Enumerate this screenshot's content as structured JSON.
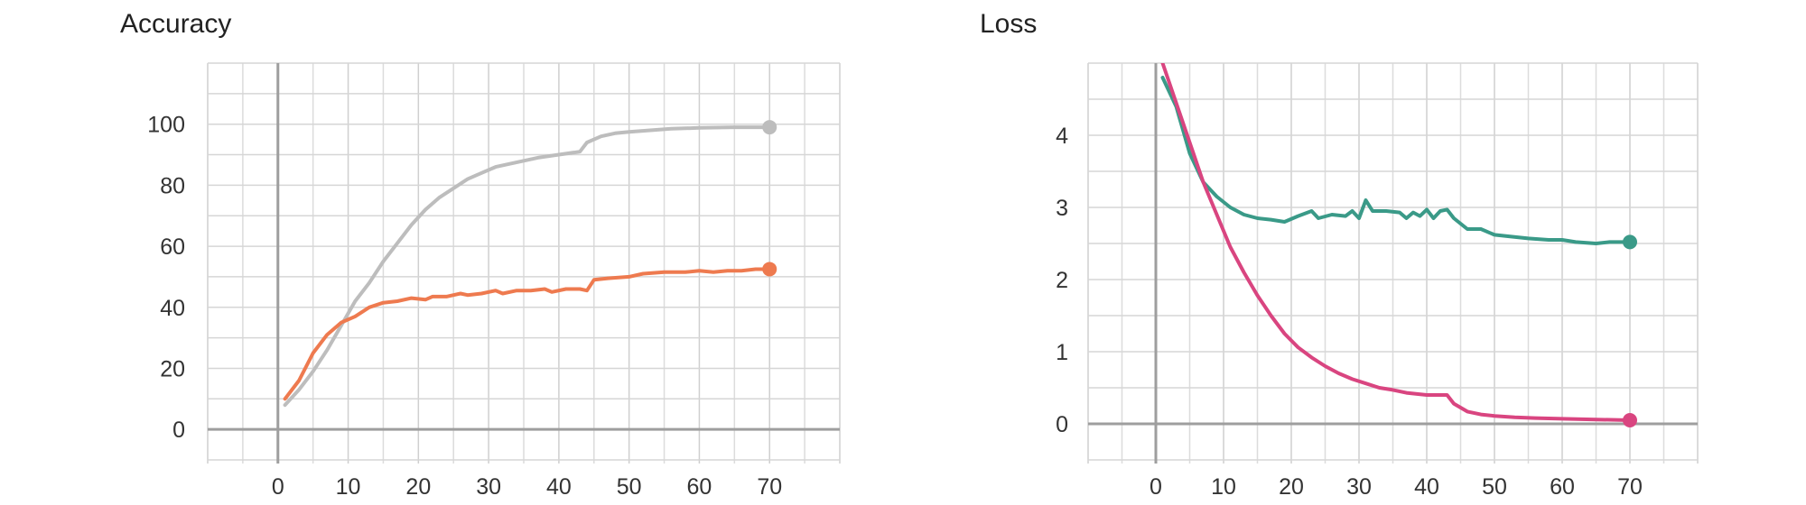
{
  "chart_data": [
    {
      "type": "line",
      "title": "Accuracy",
      "xlabel": "",
      "ylabel": "",
      "xlim": [
        -10,
        80
      ],
      "ylim": [
        -10,
        120
      ],
      "x_ticks": [
        0,
        10,
        20,
        30,
        40,
        50,
        60,
        70
      ],
      "y_ticks": [
        0,
        20,
        40,
        60,
        80,
        100
      ],
      "grid": true,
      "legend": "none",
      "series": [
        {
          "color": "#bdbdbd",
          "points": [
            [
              1,
              8
            ],
            [
              3,
              13
            ],
            [
              5,
              19
            ],
            [
              7,
              26
            ],
            [
              9,
              34
            ],
            [
              11,
              42
            ],
            [
              13,
              48
            ],
            [
              15,
              55
            ],
            [
              17,
              61
            ],
            [
              19,
              67
            ],
            [
              21,
              72
            ],
            [
              23,
              76
            ],
            [
              25,
              79
            ],
            [
              27,
              82
            ],
            [
              29,
              84
            ],
            [
              31,
              86
            ],
            [
              33,
              87
            ],
            [
              35,
              88
            ],
            [
              37,
              89
            ],
            [
              40,
              90
            ],
            [
              43,
              91
            ],
            [
              44,
              94
            ],
            [
              46,
              96
            ],
            [
              48,
              97
            ],
            [
              50,
              97.5
            ],
            [
              53,
              98
            ],
            [
              56,
              98.5
            ],
            [
              60,
              98.8
            ],
            [
              65,
              99
            ],
            [
              70,
              99
            ]
          ]
        },
        {
          "color": "#ee7a4f",
          "points": [
            [
              1,
              10
            ],
            [
              3,
              16
            ],
            [
              5,
              25
            ],
            [
              7,
              31
            ],
            [
              9,
              35
            ],
            [
              11,
              37
            ],
            [
              13,
              40
            ],
            [
              15,
              41.5
            ],
            [
              17,
              42
            ],
            [
              19,
              43
            ],
            [
              21,
              42.5
            ],
            [
              22,
              43.5
            ],
            [
              24,
              43.5
            ],
            [
              26,
              44.5
            ],
            [
              27,
              44
            ],
            [
              29,
              44.5
            ],
            [
              31,
              45.5
            ],
            [
              32,
              44.5
            ],
            [
              34,
              45.5
            ],
            [
              36,
              45.5
            ],
            [
              38,
              46
            ],
            [
              39,
              45
            ],
            [
              41,
              46
            ],
            [
              43,
              46
            ],
            [
              44,
              45.5
            ],
            [
              45,
              49
            ],
            [
              47,
              49.5
            ],
            [
              50,
              50
            ],
            [
              52,
              51
            ],
            [
              55,
              51.5
            ],
            [
              58,
              51.5
            ],
            [
              60,
              52
            ],
            [
              62,
              51.5
            ],
            [
              64,
              52
            ],
            [
              66,
              52
            ],
            [
              68,
              52.5
            ],
            [
              70,
              52.5
            ]
          ]
        }
      ]
    },
    {
      "type": "line",
      "title": "Loss",
      "xlabel": "",
      "ylabel": "",
      "xlim": [
        -10,
        80
      ],
      "ylim": [
        -0.5,
        5
      ],
      "x_ticks": [
        0,
        10,
        20,
        30,
        40,
        50,
        60,
        70
      ],
      "y_ticks": [
        0,
        1,
        2,
        3,
        4
      ],
      "grid": true,
      "legend": "none",
      "series": [
        {
          "color": "#3a9a88",
          "points": [
            [
              1,
              4.8
            ],
            [
              3,
              4.4
            ],
            [
              5,
              3.75
            ],
            [
              7,
              3.35
            ],
            [
              9,
              3.15
            ],
            [
              11,
              3.0
            ],
            [
              13,
              2.9
            ],
            [
              15,
              2.85
            ],
            [
              17,
              2.83
            ],
            [
              19,
              2.8
            ],
            [
              21,
              2.88
            ],
            [
              23,
              2.95
            ],
            [
              24,
              2.85
            ],
            [
              26,
              2.9
            ],
            [
              28,
              2.88
            ],
            [
              29,
              2.95
            ],
            [
              30,
              2.85
            ],
            [
              31,
              3.1
            ],
            [
              32,
              2.95
            ],
            [
              34,
              2.95
            ],
            [
              36,
              2.93
            ],
            [
              37,
              2.85
            ],
            [
              38,
              2.93
            ],
            [
              39,
              2.88
            ],
            [
              40,
              2.97
            ],
            [
              41,
              2.85
            ],
            [
              42,
              2.95
            ],
            [
              43,
              2.97
            ],
            [
              44,
              2.85
            ],
            [
              46,
              2.7
            ],
            [
              48,
              2.7
            ],
            [
              50,
              2.62
            ],
            [
              52,
              2.6
            ],
            [
              55,
              2.57
            ],
            [
              58,
              2.55
            ],
            [
              60,
              2.55
            ],
            [
              62,
              2.52
            ],
            [
              65,
              2.5
            ],
            [
              67,
              2.52
            ],
            [
              70,
              2.52
            ]
          ]
        },
        {
          "color": "#d94580",
          "points": [
            [
              1,
              5.0
            ],
            [
              3,
              4.45
            ],
            [
              5,
              3.9
            ],
            [
              7,
              3.35
            ],
            [
              9,
              2.9
            ],
            [
              11,
              2.45
            ],
            [
              13,
              2.1
            ],
            [
              15,
              1.78
            ],
            [
              17,
              1.5
            ],
            [
              19,
              1.25
            ],
            [
              21,
              1.06
            ],
            [
              23,
              0.92
            ],
            [
              25,
              0.8
            ],
            [
              27,
              0.7
            ],
            [
              29,
              0.62
            ],
            [
              31,
              0.56
            ],
            [
              33,
              0.5
            ],
            [
              35,
              0.47
            ],
            [
              37,
              0.43
            ],
            [
              40,
              0.4
            ],
            [
              43,
              0.4
            ],
            [
              44,
              0.28
            ],
            [
              46,
              0.17
            ],
            [
              48,
              0.13
            ],
            [
              50,
              0.11
            ],
            [
              53,
              0.09
            ],
            [
              56,
              0.08
            ],
            [
              60,
              0.07
            ],
            [
              65,
              0.06
            ],
            [
              70,
              0.05
            ]
          ]
        }
      ]
    }
  ]
}
